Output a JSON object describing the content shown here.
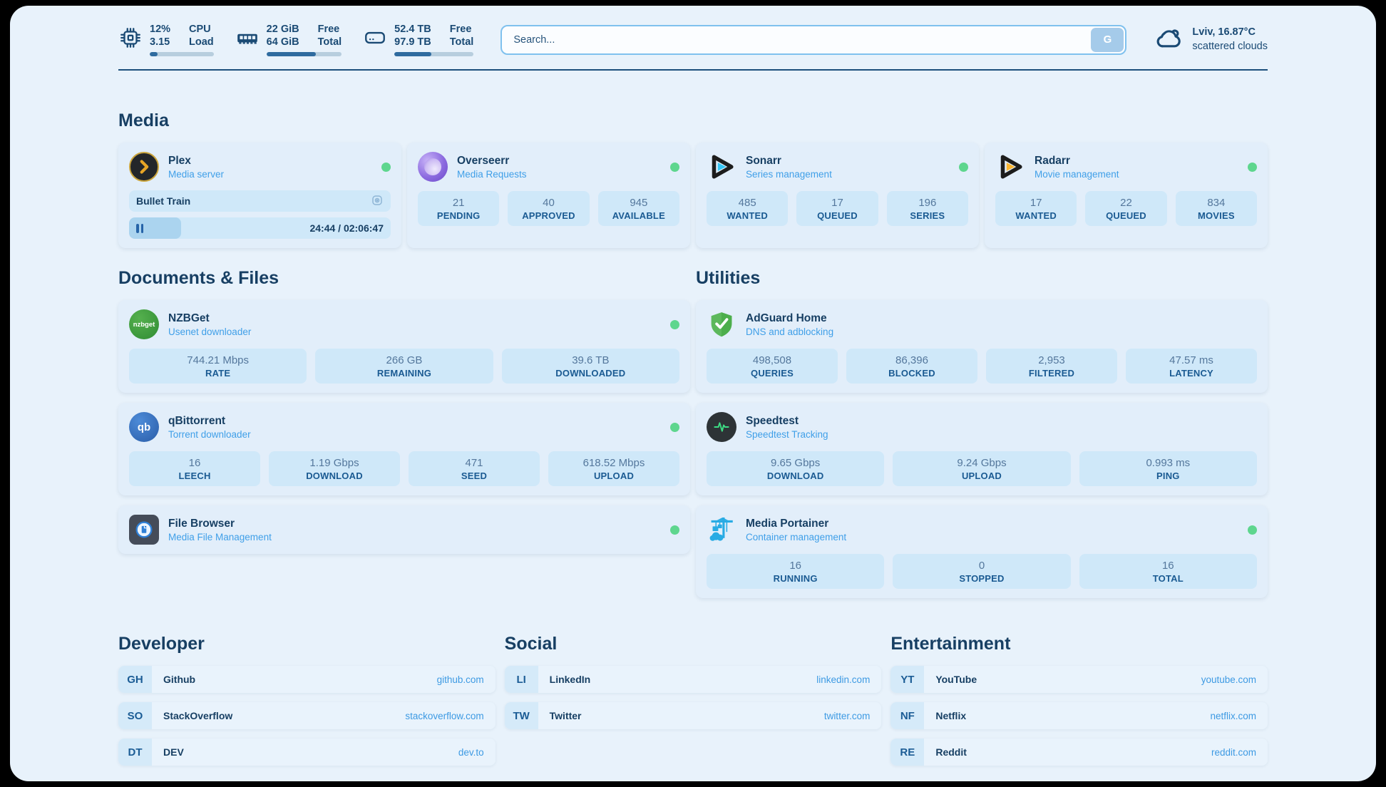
{
  "topbar": {
    "cpu": {
      "values": [
        "12%",
        "3.15"
      ],
      "labels": [
        "CPU",
        "Load"
      ],
      "progress": 12
    },
    "ram": {
      "values": [
        "22 GiB",
        "64 GiB"
      ],
      "labels": [
        "Free",
        "Total"
      ],
      "progress": 66
    },
    "disk": {
      "values": [
        "52.4 TB",
        "97.9 TB"
      ],
      "labels": [
        "Free",
        "Total"
      ],
      "progress": 47
    },
    "search": {
      "placeholder": "Search...",
      "button_label": "G"
    },
    "weather": {
      "location": "Lviv, 16.87°C",
      "condition": "scattered clouds"
    }
  },
  "sections": {
    "media": "Media",
    "documents": "Documents & Files",
    "utilities": "Utilities",
    "developer": "Developer",
    "social": "Social",
    "entertainment": "Entertainment"
  },
  "apps": {
    "plex": {
      "title": "Plex",
      "subtitle": "Media server",
      "icon_text": "❯",
      "now_playing": "Bullet Train",
      "time": "24:44 / 02:06:47",
      "progress": 20
    },
    "overseerr": {
      "title": "Overseerr",
      "subtitle": "Media Requests",
      "stats": [
        {
          "value": "21",
          "label": "PENDING"
        },
        {
          "value": "40",
          "label": "APPROVED"
        },
        {
          "value": "945",
          "label": "AVAILABLE"
        }
      ]
    },
    "sonarr": {
      "title": "Sonarr",
      "subtitle": "Series management",
      "stats": [
        {
          "value": "485",
          "label": "WANTED"
        },
        {
          "value": "17",
          "label": "QUEUED"
        },
        {
          "value": "196",
          "label": "SERIES"
        }
      ]
    },
    "radarr": {
      "title": "Radarr",
      "subtitle": "Movie management",
      "stats": [
        {
          "value": "17",
          "label": "WANTED"
        },
        {
          "value": "22",
          "label": "QUEUED"
        },
        {
          "value": "834",
          "label": "MOVIES"
        }
      ]
    },
    "nzbget": {
      "title": "NZBGet",
      "subtitle": "Usenet downloader",
      "icon_text": "nzbget",
      "stats": [
        {
          "value": "744.21 Mbps",
          "label": "RATE"
        },
        {
          "value": "266 GB",
          "label": "REMAINING"
        },
        {
          "value": "39.6 TB",
          "label": "DOWNLOADED"
        }
      ]
    },
    "qbittorrent": {
      "title": "qBittorrent",
      "subtitle": "Torrent downloader",
      "icon_text": "qb",
      "stats": [
        {
          "value": "16",
          "label": "LEECH"
        },
        {
          "value": "1.19 Gbps",
          "label": "DOWNLOAD"
        },
        {
          "value": "471",
          "label": "SEED"
        },
        {
          "value": "618.52 Mbps",
          "label": "UPLOAD"
        }
      ]
    },
    "filebrowser": {
      "title": "File Browser",
      "subtitle": "Media File Management"
    },
    "adguard": {
      "title": "AdGuard Home",
      "subtitle": "DNS and adblocking",
      "stats": [
        {
          "value": "498,508",
          "label": "QUERIES"
        },
        {
          "value": "86,396",
          "label": "BLOCKED"
        },
        {
          "value": "2,953",
          "label": "FILTERED"
        },
        {
          "value": "47.57 ms",
          "label": "LATENCY"
        }
      ]
    },
    "speedtest": {
      "title": "Speedtest",
      "subtitle": "Speedtest Tracking",
      "stats": [
        {
          "value": "9.65 Gbps",
          "label": "DOWNLOAD"
        },
        {
          "value": "9.24 Gbps",
          "label": "UPLOAD"
        },
        {
          "value": "0.993 ms",
          "label": "PING"
        }
      ]
    },
    "portainer": {
      "title": "Media Portainer",
      "subtitle": "Container management",
      "stats": [
        {
          "value": "16",
          "label": "RUNNING"
        },
        {
          "value": "0",
          "label": "STOPPED"
        },
        {
          "value": "16",
          "label": "TOTAL"
        }
      ]
    }
  },
  "bookmarks": {
    "developer": [
      {
        "abbr": "GH",
        "name": "Github",
        "url": "github.com"
      },
      {
        "abbr": "SO",
        "name": "StackOverflow",
        "url": "stackoverflow.com"
      },
      {
        "abbr": "DT",
        "name": "DEV",
        "url": "dev.to"
      }
    ],
    "social": [
      {
        "abbr": "LI",
        "name": "LinkedIn",
        "url": "linkedin.com"
      },
      {
        "abbr": "TW",
        "name": "Twitter",
        "url": "twitter.com"
      }
    ],
    "entertainment": [
      {
        "abbr": "YT",
        "name": "YouTube",
        "url": "youtube.com"
      },
      {
        "abbr": "NF",
        "name": "Netflix",
        "url": "netflix.com"
      },
      {
        "abbr": "RE",
        "name": "Reddit",
        "url": "reddit.com"
      }
    ]
  },
  "colors": {
    "accent": "#3f9fe8",
    "status_online": "#5ed68e",
    "heading": "#173f63"
  }
}
